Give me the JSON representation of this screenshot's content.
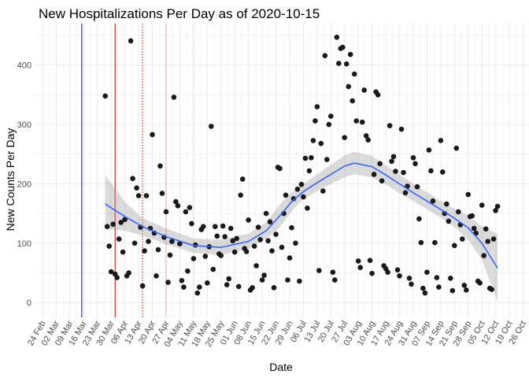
{
  "chart_data": {
    "type": "scatter",
    "title": "New Hospitalizations Per Day as of 2020-10-15",
    "xlabel": "Date",
    "ylabel": "New Counts Per Day",
    "xlim": [
      "2020-02-20",
      "2020-10-29"
    ],
    "ylim": [
      -25,
      470
    ],
    "y_ticks": [
      0,
      100,
      200,
      300,
      400
    ],
    "x_ticks": [
      "2020-02-24",
      "2020-03-02",
      "2020-03-09",
      "2020-03-16",
      "2020-03-23",
      "2020-03-30",
      "2020-04-06",
      "2020-04-13",
      "2020-04-20",
      "2020-04-27",
      "2020-05-04",
      "2020-05-11",
      "2020-05-18",
      "2020-05-25",
      "2020-06-01",
      "2020-06-08",
      "2020-06-15",
      "2020-06-22",
      "2020-06-29",
      "2020-07-06",
      "2020-07-13",
      "2020-07-20",
      "2020-07-27",
      "2020-08-03",
      "2020-08-10",
      "2020-08-17",
      "2020-08-24",
      "2020-08-31",
      "2020-09-07",
      "2020-09-14",
      "2020-09-21",
      "2020-09-28",
      "2020-10-05",
      "2020-10-12",
      "2020-10-19",
      "2020-10-26"
    ],
    "x_tick_labels": [
      "24 Feb",
      "02 Mar",
      "09 Mar",
      "16 Mar",
      "23 Mar",
      "30 Mar",
      "06 Apr",
      "13 Apr",
      "20 Apr",
      "27 Apr",
      "04 May",
      "11 May",
      "18 May",
      "25 May",
      "01 Jun",
      "08 Jun",
      "15 Jun",
      "22 Jun",
      "29 Jun",
      "06 Jul",
      "13 Jul",
      "20 Jul",
      "27 Jul",
      "03 Aug",
      "10 Aug",
      "17 Aug",
      "24 Aug",
      "31 Aug",
      "07 Sep",
      "14 Sep",
      "21 Sep",
      "28 Sep",
      "05 Oct",
      "12 Oct",
      "19 Oct",
      "26 Oct"
    ],
    "grid": true,
    "vertical_lines": [
      {
        "date": "2020-03-15",
        "color": "#0000ff",
        "style": "solid"
      },
      {
        "date": "2020-04-01",
        "color": "#cc0000",
        "style": "solid"
      },
      {
        "date": "2020-04-15",
        "color": "#cc0000",
        "style": "dotted"
      },
      {
        "date": "2020-04-27",
        "color": "#f4a6a6",
        "style": "solid"
      },
      {
        "date": "2020-05-11",
        "color": "#f4c6c6",
        "style": "dotted"
      }
    ],
    "points": [
      {
        "x": "2020-03-27",
        "y": 348
      },
      {
        "x": "2020-03-28",
        "y": 128
      },
      {
        "x": "2020-03-29",
        "y": 95
      },
      {
        "x": "2020-03-30",
        "y": 52
      },
      {
        "x": "2020-03-31",
        "y": 132
      },
      {
        "x": "2020-04-01",
        "y": 48
      },
      {
        "x": "2020-04-02",
        "y": 42
      },
      {
        "x": "2020-04-03",
        "y": 107
      },
      {
        "x": "2020-04-04",
        "y": 135
      },
      {
        "x": "2020-04-05",
        "y": 85
      },
      {
        "x": "2020-04-06",
        "y": 140
      },
      {
        "x": "2020-04-07",
        "y": 45
      },
      {
        "x": "2020-04-08",
        "y": 50
      },
      {
        "x": "2020-04-09",
        "y": 441
      },
      {
        "x": "2020-04-10",
        "y": 209
      },
      {
        "x": "2020-04-11",
        "y": 100
      },
      {
        "x": "2020-04-12",
        "y": 193
      },
      {
        "x": "2020-04-13",
        "y": 180
      },
      {
        "x": "2020-04-14",
        "y": 127
      },
      {
        "x": "2020-04-15",
        "y": 28
      },
      {
        "x": "2020-04-16",
        "y": 87
      },
      {
        "x": "2020-04-17",
        "y": 180
      },
      {
        "x": "2020-04-18",
        "y": 103
      },
      {
        "x": "2020-04-19",
        "y": 125
      },
      {
        "x": "2020-04-20",
        "y": 283
      },
      {
        "x": "2020-04-21",
        "y": 117
      },
      {
        "x": "2020-04-22",
        "y": 45
      },
      {
        "x": "2020-04-23",
        "y": 89
      },
      {
        "x": "2020-04-24",
        "y": 230
      },
      {
        "x": "2020-04-25",
        "y": 184
      },
      {
        "x": "2020-04-26",
        "y": 110
      },
      {
        "x": "2020-04-27",
        "y": 153
      },
      {
        "x": "2020-04-28",
        "y": 34
      },
      {
        "x": "2020-04-29",
        "y": 80
      },
      {
        "x": "2020-04-30",
        "y": 103
      },
      {
        "x": "2020-05-01",
        "y": 346
      },
      {
        "x": "2020-05-02",
        "y": 170
      },
      {
        "x": "2020-05-03",
        "y": 163
      },
      {
        "x": "2020-05-04",
        "y": 99
      },
      {
        "x": "2020-05-05",
        "y": 37
      },
      {
        "x": "2020-05-06",
        "y": 26
      },
      {
        "x": "2020-05-07",
        "y": 153
      },
      {
        "x": "2020-05-08",
        "y": 53
      },
      {
        "x": "2020-05-09",
        "y": 160
      },
      {
        "x": "2020-05-10",
        "y": 133
      },
      {
        "x": "2020-05-11",
        "y": 74
      },
      {
        "x": "2020-05-12",
        "y": 97
      },
      {
        "x": "2020-05-13",
        "y": 16
      },
      {
        "x": "2020-05-14",
        "y": 26
      },
      {
        "x": "2020-05-15",
        "y": 123
      },
      {
        "x": "2020-05-16",
        "y": 128
      },
      {
        "x": "2020-05-17",
        "y": 78
      },
      {
        "x": "2020-05-18",
        "y": 33
      },
      {
        "x": "2020-05-19",
        "y": 94
      },
      {
        "x": "2020-05-20",
        "y": 297
      },
      {
        "x": "2020-05-21",
        "y": 56
      },
      {
        "x": "2020-05-22",
        "y": 128
      },
      {
        "x": "2020-05-23",
        "y": 112
      },
      {
        "x": "2020-05-24",
        "y": 82
      },
      {
        "x": "2020-05-25",
        "y": 79
      },
      {
        "x": "2020-05-26",
        "y": 129
      },
      {
        "x": "2020-05-27",
        "y": 111
      },
      {
        "x": "2020-05-28",
        "y": 30
      },
      {
        "x": "2020-05-29",
        "y": 40
      },
      {
        "x": "2020-05-30",
        "y": 125
      },
      {
        "x": "2020-05-31",
        "y": 104
      },
      {
        "x": "2020-06-01",
        "y": 85
      },
      {
        "x": "2020-06-02",
        "y": 108
      },
      {
        "x": "2020-06-03",
        "y": 27
      },
      {
        "x": "2020-06-04",
        "y": 181
      },
      {
        "x": "2020-06-05",
        "y": 208
      },
      {
        "x": "2020-06-06",
        "y": 91
      },
      {
        "x": "2020-06-07",
        "y": 86
      },
      {
        "x": "2020-06-08",
        "y": 139
      },
      {
        "x": "2020-06-09",
        "y": 21
      },
      {
        "x": "2020-06-10",
        "y": 25
      },
      {
        "x": "2020-06-11",
        "y": 95
      },
      {
        "x": "2020-06-12",
        "y": 62
      },
      {
        "x": "2020-06-13",
        "y": 127
      },
      {
        "x": "2020-06-14",
        "y": 106
      },
      {
        "x": "2020-06-15",
        "y": 38
      },
      {
        "x": "2020-06-16",
        "y": 46
      },
      {
        "x": "2020-06-17",
        "y": 150
      },
      {
        "x": "2020-06-18",
        "y": 104
      },
      {
        "x": "2020-06-19",
        "y": 136
      },
      {
        "x": "2020-06-20",
        "y": 87
      },
      {
        "x": "2020-06-21",
        "y": 25
      },
      {
        "x": "2020-06-22",
        "y": 115
      },
      {
        "x": "2020-06-23",
        "y": 228
      },
      {
        "x": "2020-06-24",
        "y": 226
      },
      {
        "x": "2020-06-25",
        "y": 93
      },
      {
        "x": "2020-06-26",
        "y": 150
      },
      {
        "x": "2020-06-27",
        "y": 181
      },
      {
        "x": "2020-06-28",
        "y": 38
      },
      {
        "x": "2020-06-29",
        "y": 75
      },
      {
        "x": "2020-06-30",
        "y": 126
      },
      {
        "x": "2020-07-01",
        "y": 175
      },
      {
        "x": "2020-07-02",
        "y": 100
      },
      {
        "x": "2020-07-03",
        "y": 191
      },
      {
        "x": "2020-07-04",
        "y": 36
      },
      {
        "x": "2020-07-05",
        "y": 199
      },
      {
        "x": "2020-07-06",
        "y": 178
      },
      {
        "x": "2020-07-07",
        "y": 243
      },
      {
        "x": "2020-07-08",
        "y": 159
      },
      {
        "x": "2020-07-09",
        "y": 222
      },
      {
        "x": "2020-07-10",
        "y": 244
      },
      {
        "x": "2020-07-11",
        "y": 273
      },
      {
        "x": "2020-07-12",
        "y": 306
      },
      {
        "x": "2020-07-13",
        "y": 330
      },
      {
        "x": "2020-07-14",
        "y": 54
      },
      {
        "x": "2020-07-15",
        "y": 268
      },
      {
        "x": "2020-07-16",
        "y": 188
      },
      {
        "x": "2020-07-17",
        "y": 416
      },
      {
        "x": "2020-07-18",
        "y": 241
      },
      {
        "x": "2020-07-19",
        "y": 300
      },
      {
        "x": "2020-07-20",
        "y": 314
      },
      {
        "x": "2020-07-21",
        "y": 51
      },
      {
        "x": "2020-07-22",
        "y": 38
      },
      {
        "x": "2020-07-23",
        "y": 447
      },
      {
        "x": "2020-07-24",
        "y": 403
      },
      {
        "x": "2020-07-25",
        "y": 428
      },
      {
        "x": "2020-07-26",
        "y": 430
      },
      {
        "x": "2020-07-27",
        "y": 278
      },
      {
        "x": "2020-07-28",
        "y": 402
      },
      {
        "x": "2020-07-29",
        "y": 364
      },
      {
        "x": "2020-07-30",
        "y": 418
      },
      {
        "x": "2020-07-31",
        "y": 340
      },
      {
        "x": "2020-08-01",
        "y": 385
      },
      {
        "x": "2020-08-02",
        "y": 306
      },
      {
        "x": "2020-08-03",
        "y": 70
      },
      {
        "x": "2020-08-04",
        "y": 59
      },
      {
        "x": "2020-08-05",
        "y": 304
      },
      {
        "x": "2020-08-06",
        "y": 358
      },
      {
        "x": "2020-08-07",
        "y": 281
      },
      {
        "x": "2020-08-08",
        "y": 274
      },
      {
        "x": "2020-08-09",
        "y": 71
      },
      {
        "x": "2020-08-10",
        "y": 49
      },
      {
        "x": "2020-08-11",
        "y": 216
      },
      {
        "x": "2020-08-12",
        "y": 355
      },
      {
        "x": "2020-08-13",
        "y": 350
      },
      {
        "x": "2020-08-14",
        "y": 234
      },
      {
        "x": "2020-08-15",
        "y": 205
      },
      {
        "x": "2020-08-16",
        "y": 62
      },
      {
        "x": "2020-08-17",
        "y": 57
      },
      {
        "x": "2020-08-18",
        "y": 51
      },
      {
        "x": "2020-08-19",
        "y": 298
      },
      {
        "x": "2020-08-20",
        "y": 238
      },
      {
        "x": "2020-08-21",
        "y": 246
      },
      {
        "x": "2020-08-22",
        "y": 221
      },
      {
        "x": "2020-08-23",
        "y": 55
      },
      {
        "x": "2020-08-24",
        "y": 45
      },
      {
        "x": "2020-08-25",
        "y": 292
      },
      {
        "x": "2020-08-26",
        "y": 219
      },
      {
        "x": "2020-08-27",
        "y": 185
      },
      {
        "x": "2020-08-28",
        "y": 196
      },
      {
        "x": "2020-08-29",
        "y": 41
      },
      {
        "x": "2020-08-30",
        "y": 31
      },
      {
        "x": "2020-08-31",
        "y": 244
      },
      {
        "x": "2020-09-01",
        "y": 234
      },
      {
        "x": "2020-09-02",
        "y": 195
      },
      {
        "x": "2020-09-03",
        "y": 141
      },
      {
        "x": "2020-09-04",
        "y": 101
      },
      {
        "x": "2020-09-05",
        "y": 24
      },
      {
        "x": "2020-09-06",
        "y": 16
      },
      {
        "x": "2020-09-07",
        "y": 51
      },
      {
        "x": "2020-09-08",
        "y": 257
      },
      {
        "x": "2020-09-09",
        "y": 222
      },
      {
        "x": "2020-09-10",
        "y": 171
      },
      {
        "x": "2020-09-11",
        "y": 101
      },
      {
        "x": "2020-09-12",
        "y": 42
      },
      {
        "x": "2020-09-13",
        "y": 26
      },
      {
        "x": "2020-09-14",
        "y": 273
      },
      {
        "x": "2020-09-15",
        "y": 220
      },
      {
        "x": "2020-09-16",
        "y": 150
      },
      {
        "x": "2020-09-17",
        "y": 166
      },
      {
        "x": "2020-09-18",
        "y": 137
      },
      {
        "x": "2020-09-19",
        "y": 41
      },
      {
        "x": "2020-09-20",
        "y": 20
      },
      {
        "x": "2020-09-21",
        "y": 96
      },
      {
        "x": "2020-09-22",
        "y": 260
      },
      {
        "x": "2020-09-23",
        "y": 153
      },
      {
        "x": "2020-09-24",
        "y": 131
      },
      {
        "x": "2020-09-25",
        "y": 107
      },
      {
        "x": "2020-09-26",
        "y": 29
      },
      {
        "x": "2020-09-27",
        "y": 21
      },
      {
        "x": "2020-09-28",
        "y": 182
      },
      {
        "x": "2020-09-29",
        "y": 145
      },
      {
        "x": "2020-09-30",
        "y": 146
      },
      {
        "x": "2020-10-01",
        "y": 125
      },
      {
        "x": "2020-10-02",
        "y": 117
      },
      {
        "x": "2020-10-03",
        "y": 36
      },
      {
        "x": "2020-10-04",
        "y": 33
      },
      {
        "x": "2020-10-05",
        "y": 164
      },
      {
        "x": "2020-10-06",
        "y": 79
      },
      {
        "x": "2020-10-07",
        "y": 124
      },
      {
        "x": "2020-10-08",
        "y": 103
      },
      {
        "x": "2020-10-09",
        "y": 24
      },
      {
        "x": "2020-10-10",
        "y": 22
      },
      {
        "x": "2020-10-11",
        "y": 107
      },
      {
        "x": "2020-10-12",
        "y": 155
      },
      {
        "x": "2020-10-13",
        "y": 162
      }
    ],
    "trend": {
      "color": "#3366ff",
      "x": [
        "2020-03-27",
        "2020-04-06",
        "2020-04-15",
        "2020-04-27",
        "2020-05-11",
        "2020-05-25",
        "2020-06-08",
        "2020-06-17",
        "2020-06-24",
        "2020-06-30",
        "2020-07-06",
        "2020-07-13",
        "2020-07-20",
        "2020-07-27",
        "2020-08-01",
        "2020-08-10",
        "2020-08-17",
        "2020-08-24",
        "2020-08-31",
        "2020-09-07",
        "2020-09-14",
        "2020-09-21",
        "2020-09-28",
        "2020-10-05",
        "2020-10-13"
      ],
      "y": [
        166,
        145,
        128,
        111,
        96,
        93,
        103,
        121,
        146,
        170,
        187,
        202,
        216,
        230,
        235,
        229,
        215,
        200,
        185,
        171,
        157,
        142,
        126,
        100,
        58
      ],
      "lower": [
        124,
        121,
        113,
        98,
        84,
        80,
        91,
        107,
        127,
        154,
        174,
        188,
        200,
        211,
        216,
        211,
        199,
        184,
        171,
        157,
        143,
        127,
        106,
        72,
        2
      ],
      "upper": [
        215,
        170,
        142,
        125,
        108,
        106,
        116,
        135,
        165,
        186,
        200,
        216,
        232,
        248,
        254,
        247,
        231,
        216,
        200,
        186,
        171,
        158,
        147,
        128,
        116
      ]
    }
  }
}
